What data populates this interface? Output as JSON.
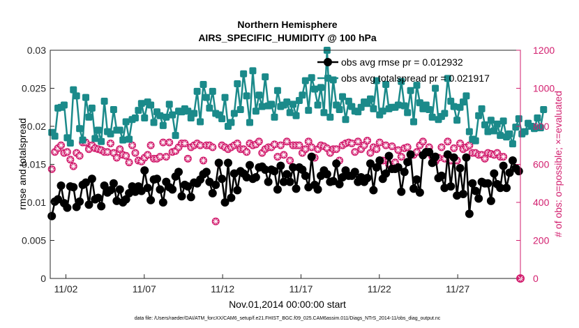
{
  "chart_data": {
    "type": "line",
    "title": "Northern Hemisphere",
    "subtitle": "AIRS_SPECIFIC_HUMIDITY @ 100 hPa",
    "xlabel": "Nov.01,2014 00:00:00 start",
    "ylabel_left": "rmse and totalspread",
    "ylabel_right": "# of obs: o=possible; ×=evaluated",
    "footer": "data file: /Users/raeder/DAI/ATM_forcXX/CAM6_setup/f.e21.FHIST_BGC.f09_025.CAM6assim.011/Diags_NTrS_2014-11/obs_diag_output.nc",
    "x_ticks": [
      {
        "label": "11/02",
        "day": 2
      },
      {
        "label": "11/07",
        "day": 7
      },
      {
        "label": "11/12",
        "day": 12
      },
      {
        "label": "11/17",
        "day": 17
      },
      {
        "label": "11/22",
        "day": 22
      },
      {
        "label": "11/27",
        "day": 27
      }
    ],
    "xlim": [
      1,
      31
    ],
    "ylim_left": [
      0,
      0.03
    ],
    "yticks_left": [
      "0",
      "0.005",
      "0.01",
      "0.015",
      "0.02",
      "0.025",
      "0.03"
    ],
    "ylim_right": [
      0,
      1200
    ],
    "yticks_right": [
      "0",
      "200",
      "400",
      "600",
      "800",
      "1000",
      "1200"
    ],
    "grid": false,
    "legend_position": "top-right",
    "colors": {
      "rmse": "#000000",
      "spread": "#1b8a8a",
      "obs": "#d21e6e",
      "axis_right": "#d21e6e"
    },
    "series": [
      {
        "name": "obs avg rmse pr = 0.012932",
        "axis": "left",
        "color": "#000000",
        "values": [
          0.0082,
          0.0101,
          0.0104,
          0.0122,
          0.0099,
          0.0093,
          0.0121,
          0.012,
          0.0094,
          0.0101,
          0.0123,
          0.0126,
          0.0097,
          0.0131,
          0.0104,
          0.0106,
          0.0095,
          0.0122,
          0.0113,
          0.0116,
          0.0125,
          0.0102,
          0.0117,
          0.01,
          0.0104,
          0.0112,
          0.0121,
          0.0114,
          0.0121,
          0.0115,
          0.0142,
          0.0119,
          0.0103,
          0.013,
          0.0131,
          0.0117,
          0.01,
          0.0127,
          0.012,
          0.0117,
          0.0134,
          0.014,
          0.0108,
          0.0123,
          0.0121,
          0.0107,
          0.0126,
          0.0125,
          0.013,
          0.0137,
          0.014,
          0.0127,
          0.0112,
          0.0123,
          0.0152,
          0.0131,
          0.01,
          0.0152,
          0.0106,
          0.0138,
          0.0116,
          0.0141,
          0.0138,
          0.0133,
          0.0149,
          0.0131,
          0.0133,
          0.0146,
          0.0147,
          0.0143,
          0.0127,
          0.0143,
          0.0141,
          0.0117,
          0.0148,
          0.0127,
          0.0137,
          0.0127,
          0.0146,
          0.0118,
          0.0146,
          0.0143,
          0.0135,
          0.012,
          0.016,
          0.0123,
          0.0117,
          0.0135,
          0.0142,
          0.0137,
          0.0127,
          0.0128,
          0.0151,
          0.0124,
          0.0133,
          0.0142,
          0.0135,
          0.0135,
          0.014,
          0.0127,
          0.0133,
          0.0127,
          0.0132,
          0.0151,
          0.0116,
          0.0146,
          0.0155,
          0.0131,
          0.0138,
          0.0161,
          0.0144,
          0.0144,
          0.0146,
          0.0114,
          0.014,
          0.0153,
          0.0163,
          0.0118,
          0.013,
          0.0113,
          0.0162,
          0.0166,
          0.0166,
          0.0152,
          0.016,
          0.0132,
          0.0135,
          0.0119,
          0.0163,
          0.0121,
          0.0159,
          0.0109,
          0.0145,
          0.0111,
          0.0159,
          0.0085,
          0.0125,
          0.0115,
          0.0105,
          0.0127,
          0.0125,
          0.0125,
          0.0102,
          0.0138,
          0.0124,
          0.0119,
          0.0148,
          0.0119,
          0.0139,
          0.0155,
          0.0145,
          0.0141
        ]
      },
      {
        "name": "obs avg totalspread pr = 0.021917",
        "axis": "left",
        "color": "#1b8a8a",
        "values": [
          0.0192,
          0.0187,
          0.0224,
          0.0225,
          0.0228,
          0.0185,
          0.0178,
          0.0248,
          0.024,
          0.0197,
          0.0182,
          0.0238,
          0.0212,
          0.0224,
          0.0184,
          0.0195,
          0.018,
          0.0233,
          0.0193,
          0.019,
          0.0222,
          0.0195,
          0.0195,
          0.0182,
          0.0206,
          0.0183,
          0.0209,
          0.0211,
          0.0221,
          0.023,
          0.0211,
          0.0232,
          0.0228,
          0.0205,
          0.0219,
          0.0214,
          0.0201,
          0.0212,
          0.0229,
          0.0215,
          0.0188,
          0.022,
          0.0219,
          0.0223,
          0.022,
          0.0211,
          0.0217,
          0.0246,
          0.0206,
          0.0255,
          0.0238,
          0.0224,
          0.0246,
          0.0217,
          0.0215,
          0.021,
          0.0238,
          0.02,
          0.0205,
          0.0217,
          0.0256,
          0.0222,
          0.0269,
          0.024,
          0.0205,
          0.0273,
          0.022,
          0.0241,
          0.0226,
          0.0265,
          0.0227,
          0.0229,
          0.0212,
          0.0247,
          0.0226,
          0.0228,
          0.0232,
          0.0218,
          0.0229,
          0.0214,
          0.0234,
          0.0241,
          0.026,
          0.0221,
          0.0264,
          0.0249,
          0.0228,
          0.0251,
          0.0218,
          0.03,
          0.0212,
          0.0261,
          0.0228,
          0.0222,
          0.0239,
          0.0209,
          0.0233,
          0.0226,
          0.022,
          0.0219,
          0.0225,
          0.0232,
          0.023,
          0.0236,
          0.0223,
          0.026,
          0.0215,
          0.022,
          0.0255,
          0.0223,
          0.0225,
          0.0225,
          0.0228,
          0.0259,
          0.0227,
          0.0218,
          0.0247,
          0.0206,
          0.0254,
          0.0231,
          0.0223,
          0.0228,
          0.0222,
          0.0212,
          0.025,
          0.0209,
          0.0213,
          0.0217,
          0.0263,
          0.0233,
          0.0226,
          0.0208,
          0.0225,
          0.0232,
          0.024,
          0.0193,
          0.0183,
          0.0181,
          0.0214,
          0.0223,
          0.0202,
          0.0193,
          0.0208,
          0.0194,
          0.0203,
          0.0188,
          0.0207,
          0.0186,
          0.019,
          0.0177,
          0.0199,
          0.021,
          0.019,
          0.0193,
          0.0204,
          0.02,
          0.0197,
          0.0211,
          0.0198,
          0.0222
        ]
      },
      {
        "name": "possible",
        "axis": "right",
        "color": "#d21e6e",
        "values": [
          575,
          665,
          685,
          700,
          660,
          665,
          625,
          590,
          660,
          645,
          715,
          715,
          680,
          700,
          685,
          680,
          675,
          665,
          665,
          710,
          660,
          635,
          680,
          650,
          645,
          610,
          700,
          660,
          620,
          615,
          635,
          650,
          700,
          630,
          630,
          640,
          715,
          640,
          715,
          665,
          670,
          690,
          710,
          710,
          630,
          690,
          700,
          710,
          700,
          620,
          700,
          700,
          690,
          300,
          605,
          700,
          690,
          680,
          690,
          700,
          710,
          680,
          680,
          665,
          710,
          700,
          705,
          720,
          660,
          680,
          690,
          690,
          705,
          640,
          700,
          650,
          720,
          620,
          700,
          700,
          700,
          660,
          680,
          720,
          690,
          635,
          680,
          700,
          695,
          685,
          660,
          680,
          680,
          620,
          700,
          710,
          715,
          710,
          665,
          720,
          680,
          700,
          725,
          660,
          690,
          680,
          715,
          620,
          700,
          600,
          695,
          610,
          675,
          640,
          685,
          690,
          650,
          650,
          665,
          700,
          720,
          660,
          690,
          640,
          615,
          635,
          690,
          630,
          720,
          620,
          685,
          620,
          710,
          680,
          690,
          700,
          660,
          660,
          650,
          650,
          630,
          660,
          655,
          650,
          660,
          640,
          640
        ]
      }
    ]
  }
}
